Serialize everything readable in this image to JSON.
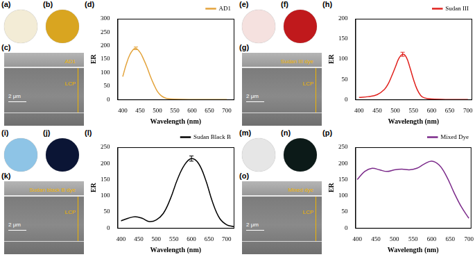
{
  "chart_data": [
    {
      "type": "line",
      "x_label": "Wavelength (nm)",
      "y_label": "ER",
      "legend": "upper right",
      "grid": false,
      "x": [
        400,
        410,
        420,
        430,
        438,
        450,
        460,
        470,
        480,
        490,
        500,
        510,
        520,
        530,
        550,
        600,
        650,
        700
      ],
      "series": [
        {
          "name": "AD1",
          "color": "#e3a33b",
          "values": [
            85,
            130,
            165,
            185,
            190,
            175,
            150,
            120,
            85,
            55,
            30,
            15,
            7,
            3,
            1,
            0,
            0,
            0
          ],
          "errors": [
            null,
            null,
            null,
            null,
            5,
            null,
            null,
            null,
            null,
            null,
            null,
            null,
            null,
            null,
            null,
            null,
            null,
            null
          ]
        }
      ],
      "xlim": [
        385,
        720
      ],
      "xticks": [
        400,
        450,
        500,
        550,
        600,
        650,
        700
      ],
      "ylim": [
        0,
        300
      ],
      "yticks": [
        0,
        50,
        100,
        150,
        200,
        250,
        300
      ]
    },
    {
      "type": "line",
      "x_label": "Wavelength (nm)",
      "y_label": "ER",
      "legend": "upper right",
      "grid": false,
      "x": [
        400,
        425,
        450,
        470,
        480,
        490,
        500,
        510,
        520,
        530,
        540,
        550,
        560,
        570,
        580,
        600,
        650,
        700
      ],
      "series": [
        {
          "name": "Sudan III",
          "color": "#e0201c",
          "values": [
            5,
            7,
            12,
            25,
            38,
            58,
            80,
            102,
            112,
            105,
            80,
            50,
            25,
            10,
            4,
            1,
            0,
            0
          ],
          "errors": [
            null,
            null,
            null,
            null,
            null,
            null,
            null,
            null,
            5,
            null,
            null,
            null,
            null,
            null,
            null,
            null,
            null,
            null
          ]
        }
      ],
      "xlim": [
        390,
        710
      ],
      "xticks": [
        400,
        450,
        500,
        550,
        600,
        650,
        700
      ],
      "ylim": [
        0,
        200
      ],
      "yticks": [
        0,
        50,
        100,
        150,
        200
      ]
    },
    {
      "type": "line",
      "x_label": "Wavelength (nm)",
      "y_label": "ER",
      "legend": "upper right",
      "grid": false,
      "x": [
        400,
        420,
        440,
        460,
        480,
        500,
        520,
        540,
        560,
        580,
        600,
        620,
        640,
        660,
        680,
        700,
        720
      ],
      "series": [
        {
          "name": "Sudan Black B",
          "color": "#000000",
          "values": [
            22,
            30,
            35,
            30,
            20,
            25,
            45,
            90,
            150,
            195,
            215,
            200,
            150,
            80,
            30,
            10,
            4
          ],
          "errors": [
            null,
            null,
            null,
            null,
            null,
            null,
            null,
            null,
            null,
            null,
            8,
            null,
            null,
            null,
            null,
            null,
            null
          ]
        }
      ],
      "xlim": [
        390,
        720
      ],
      "xticks": [
        400,
        450,
        500,
        550,
        600,
        650,
        700
      ],
      "ylim": [
        0,
        250
      ],
      "yticks": [
        0,
        50,
        100,
        150,
        200,
        250
      ]
    },
    {
      "type": "line",
      "x_label": "Wavelength (nm)",
      "y_label": "ER",
      "legend": "upper right",
      "grid": false,
      "x": [
        400,
        420,
        440,
        460,
        480,
        500,
        520,
        540,
        560,
        580,
        600,
        620,
        640,
        660,
        680,
        700
      ],
      "series": [
        {
          "name": "Mixed Dye",
          "color": "#7b2a8a",
          "values": [
            150,
            175,
            185,
            180,
            175,
            180,
            182,
            180,
            185,
            198,
            207,
            195,
            160,
            110,
            65,
            30
          ],
          "errors": [
            null,
            null,
            null,
            null,
            null,
            null,
            null,
            null,
            null,
            null,
            null,
            null,
            null,
            null,
            null,
            null
          ]
        }
      ],
      "xlim": [
        395,
        705
      ],
      "xticks": [
        400,
        450,
        500,
        550,
        600,
        650,
        700
      ],
      "ylim": [
        0,
        250
      ],
      "yticks": [
        0,
        50,
        100,
        150,
        200,
        250
      ]
    }
  ],
  "figure": {
    "groups": [
      {
        "photos": [
          {
            "label": "(a)",
            "color": "#f3ecd6"
          },
          {
            "label": "(b)",
            "color": "#d9a520"
          }
        ],
        "sem": {
          "label": "(c)",
          "scale_bar": "2 μm",
          "layer_labels": [
            "AD1",
            "LCP"
          ]
        },
        "chart_label": "(d)"
      },
      {
        "photos": [
          {
            "label": "(e)",
            "color": "#f5e1df"
          },
          {
            "label": "(f)",
            "color": "#c0191c"
          }
        ],
        "sem": {
          "label": "(g)",
          "scale_bar": "2 μm",
          "layer_labels": [
            "Sudan III dye",
            "LCP"
          ]
        },
        "chart_label": "(h)"
      },
      {
        "photos": [
          {
            "label": "(i)",
            "color": "#8ec4e6"
          },
          {
            "label": "(j)",
            "color": "#0b1535"
          }
        ],
        "sem": {
          "label": "(k)",
          "scale_bar": "2 μm",
          "layer_labels": [
            "Sudan black B dye",
            "LCP"
          ]
        },
        "chart_label": "(l)"
      },
      {
        "photos": [
          {
            "label": "(m)",
            "color": "#e6e6e6"
          },
          {
            "label": "(n)",
            "color": "#0c1a18"
          }
        ],
        "sem": {
          "label": "(o)",
          "scale_bar": "2 μm",
          "layer_labels": [
            "Mixed dye",
            "LCP"
          ]
        },
        "chart_label": "(p)"
      }
    ]
  }
}
